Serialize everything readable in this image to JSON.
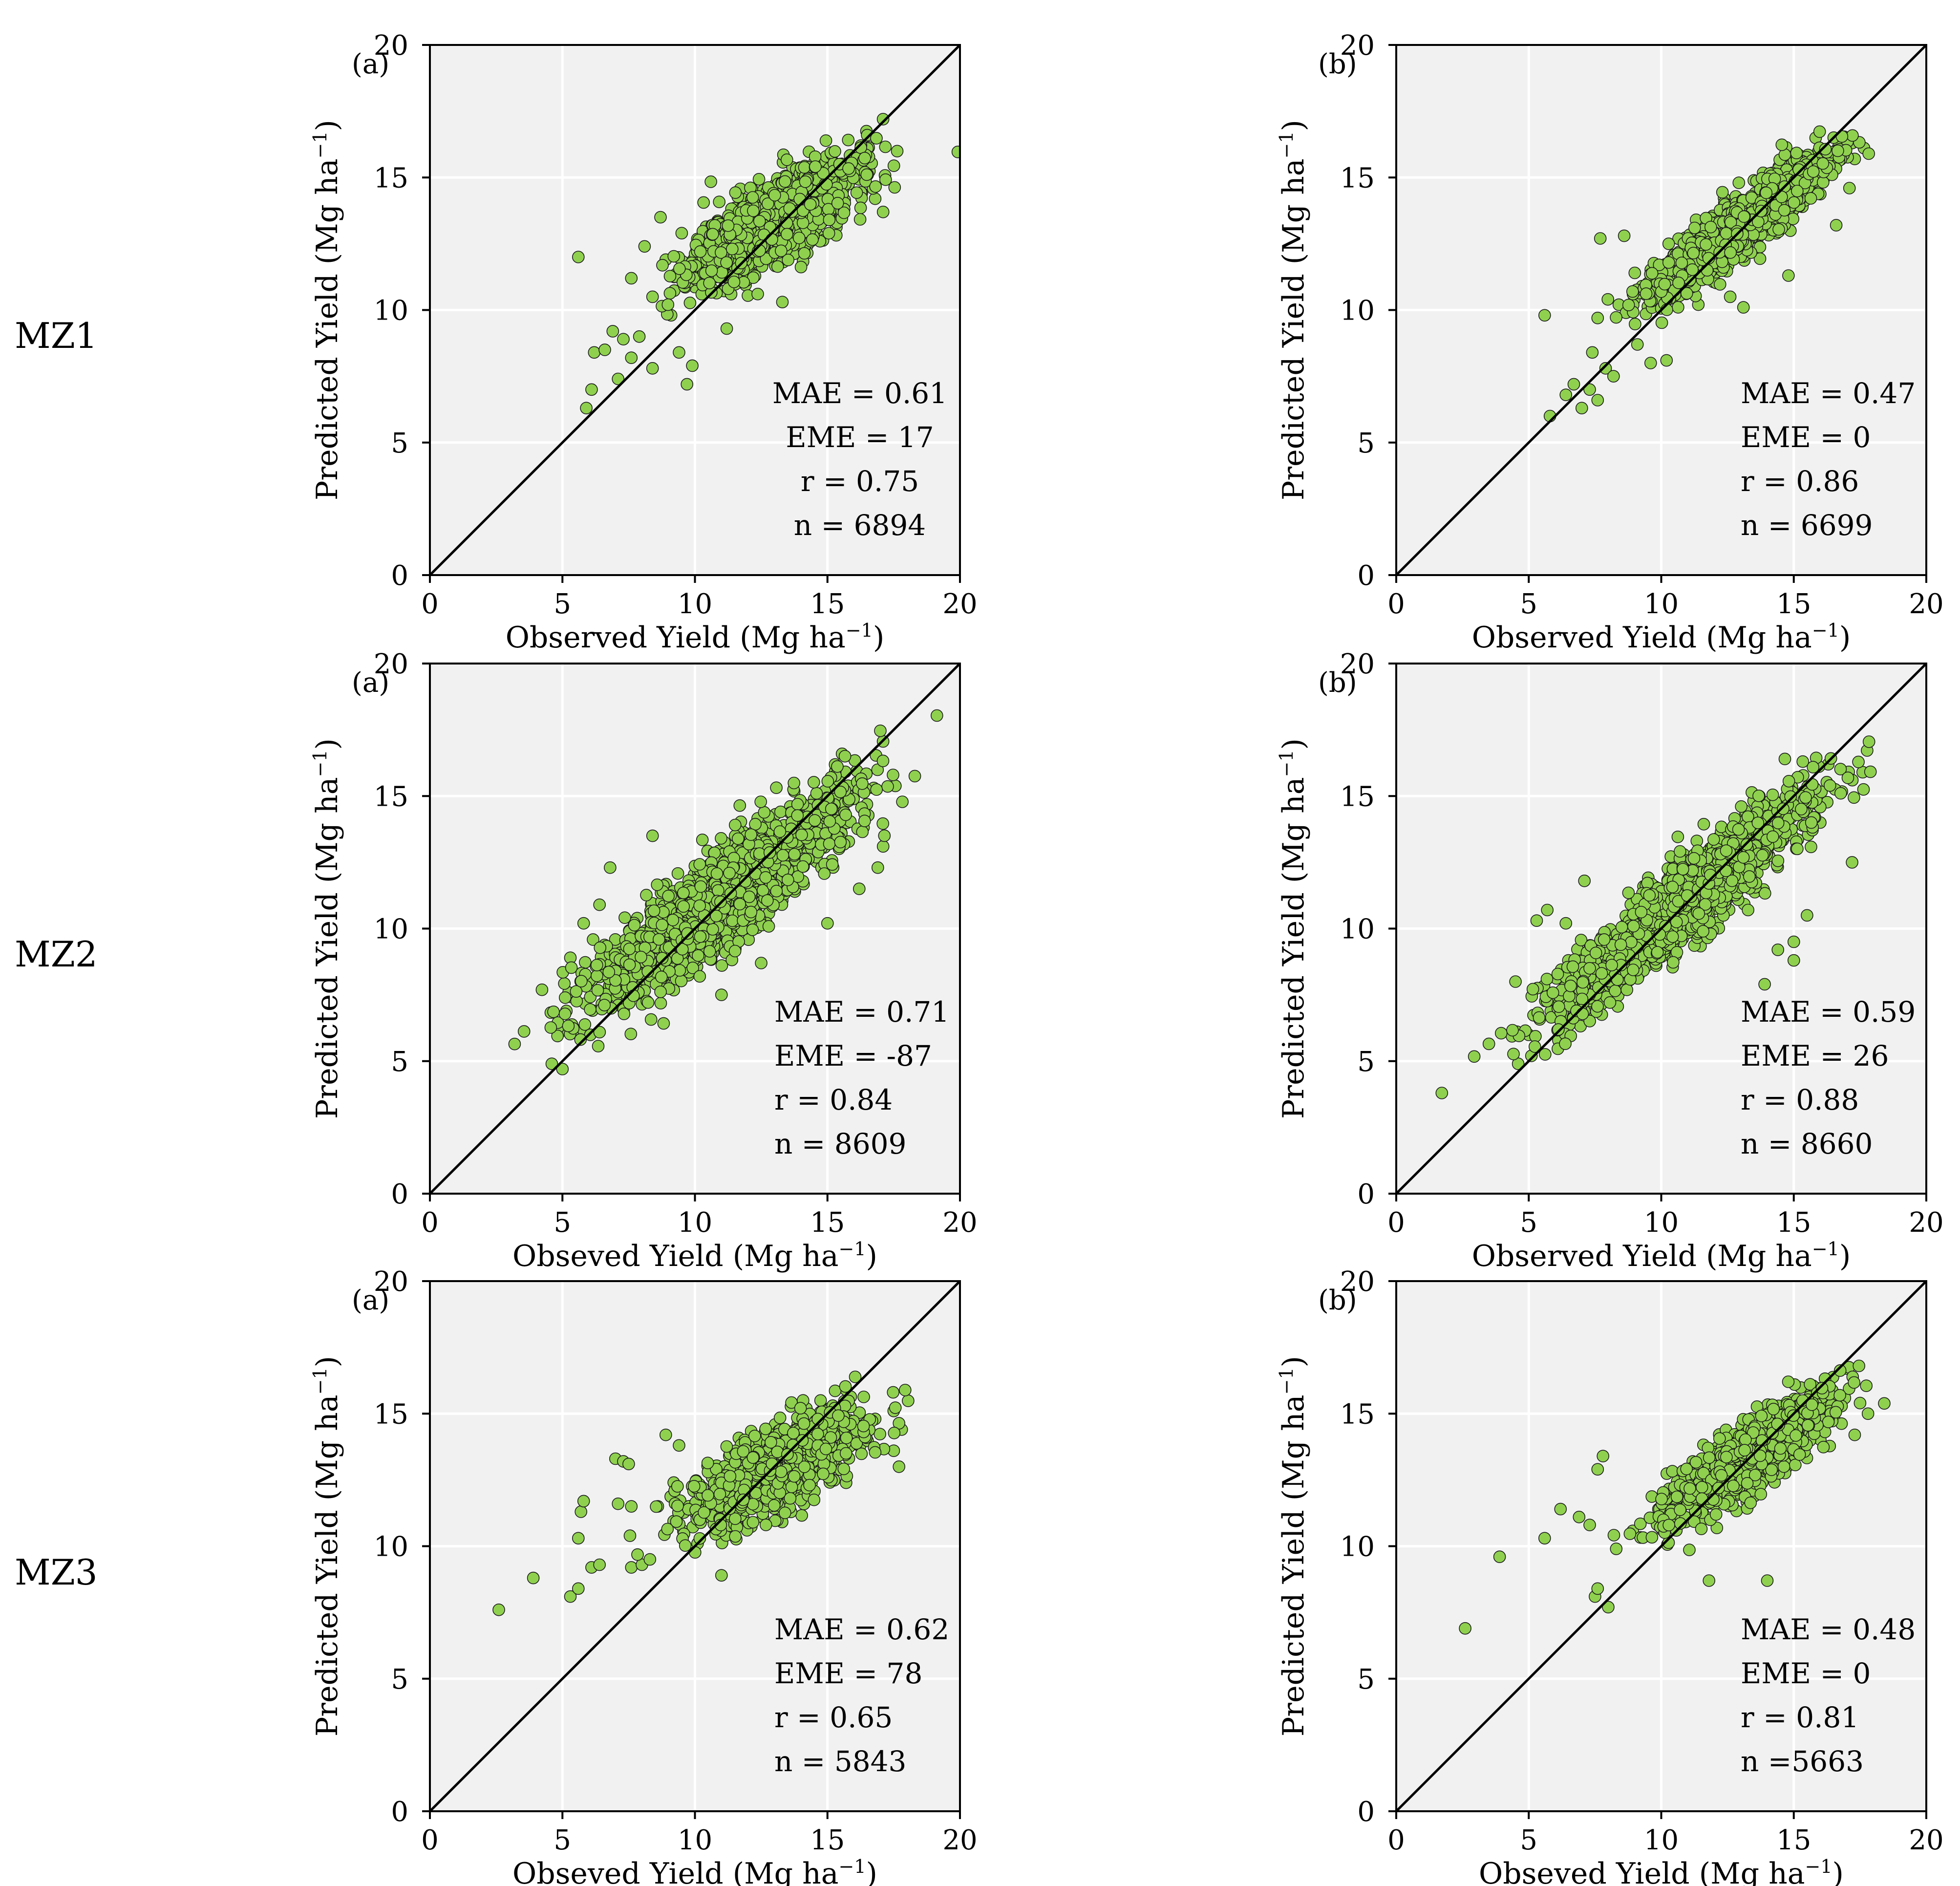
{
  "colors": {
    "plot_background": "#f1f1f1",
    "grid": "#ffffff",
    "point_fill": "#8fd14f",
    "point_edge": "#1a1a1a",
    "one_to_one_line": "#000000"
  },
  "row_labels": [
    "MZ1",
    "MZ2",
    "MZ3"
  ],
  "chart_data": [
    {
      "id": "mz1-a",
      "type": "scatter",
      "panel_label": "(a)",
      "xlabel_main": "Observed Yield (Mg ha",
      "xlabel_sup": "−1",
      "xlabel_end": ")",
      "ylabel_main": "Predicted Yield (Mg ha",
      "ylabel_sup": "−1",
      "ylabel_end": ")",
      "xlim": [
        0,
        20
      ],
      "ylim": [
        0,
        20
      ],
      "xticks": [
        "0",
        "5",
        "10",
        "15",
        "20"
      ],
      "yticks": [
        "0",
        "5",
        "10",
        "15",
        "20"
      ],
      "stats": [
        "MAE = 0.61",
        "EME = 17",
        "r = 0.75",
        "n = 6894"
      ],
      "stats_align": "center",
      "reference_line": "1:1",
      "cloud": {
        "x_mean": 13.0,
        "x_sd": 1.5,
        "slope": 0.55,
        "intercept": 6.2,
        "resid_sd": 0.75,
        "n": 1300,
        "seed": 11
      },
      "outliers": [
        [
          5.6,
          12.0
        ],
        [
          5.9,
          6.3
        ],
        [
          6.1,
          7.0
        ],
        [
          6.2,
          8.4
        ],
        [
          6.6,
          8.5
        ],
        [
          6.9,
          9.2
        ],
        [
          7.1,
          7.4
        ],
        [
          7.3,
          8.9
        ],
        [
          7.6,
          8.2
        ],
        [
          7.9,
          9.0
        ],
        [
          8.4,
          7.8
        ],
        [
          8.7,
          13.5
        ],
        [
          9.1,
          9.8
        ],
        [
          9.4,
          8.4
        ],
        [
          9.7,
          7.2
        ],
        [
          9.9,
          7.9
        ],
        [
          8.4,
          10.5
        ],
        [
          8.9,
          11.9
        ],
        [
          9.5,
          12.9
        ],
        [
          11.2,
          9.3
        ],
        [
          13.3,
          10.3
        ],
        [
          14.6,
          15.1
        ],
        [
          16.2,
          15.2
        ],
        [
          16.8,
          14.2
        ],
        [
          17.1,
          13.7
        ],
        [
          7.6,
          11.2
        ],
        [
          8.1,
          12.4
        ]
      ]
    },
    {
      "id": "mz1-b",
      "type": "scatter",
      "panel_label": "(b)",
      "xlabel_main": "Observed Yield (Mg ha",
      "xlabel_sup": "−1",
      "xlabel_end": ")",
      "ylabel_main": "Predicted Yield (Mg ha",
      "ylabel_sup": "−1",
      "ylabel_end": ")",
      "xlim": [
        0,
        20
      ],
      "ylim": [
        0,
        20
      ],
      "xticks": [
        "0",
        "5",
        "10",
        "15",
        "20"
      ],
      "yticks": [
        "0",
        "5",
        "10",
        "15",
        "20"
      ],
      "stats": [
        "MAE = 0.47",
        "EME = 0",
        "r =  0.86",
        "n = 6699"
      ],
      "stats_align": "left",
      "reference_line": "1:1",
      "cloud": {
        "x_mean": 13.0,
        "x_sd": 1.6,
        "slope": 0.72,
        "intercept": 3.8,
        "resid_sd": 0.55,
        "n": 1300,
        "seed": 23
      },
      "outliers": [
        [
          5.6,
          9.8
        ],
        [
          5.8,
          6.0
        ],
        [
          6.4,
          6.8
        ],
        [
          6.7,
          7.2
        ],
        [
          7.0,
          6.3
        ],
        [
          7.3,
          7.0
        ],
        [
          7.6,
          6.6
        ],
        [
          7.9,
          7.8
        ],
        [
          8.2,
          7.5
        ],
        [
          7.4,
          8.4
        ],
        [
          7.7,
          12.7
        ],
        [
          8.6,
          12.8
        ],
        [
          9.1,
          8.7
        ],
        [
          9.6,
          8.0
        ],
        [
          10.2,
          8.1
        ],
        [
          7.6,
          9.7
        ],
        [
          8.4,
          10.2
        ],
        [
          9.0,
          11.4
        ],
        [
          11.4,
          10.2
        ],
        [
          12.6,
          10.5
        ],
        [
          13.1,
          10.1
        ],
        [
          14.8,
          11.3
        ],
        [
          16.2,
          15.6
        ],
        [
          17.2,
          16.3
        ],
        [
          17.3,
          15.7
        ],
        [
          17.1,
          14.6
        ],
        [
          16.6,
          13.2
        ]
      ]
    },
    {
      "id": "mz2-a",
      "type": "scatter",
      "panel_label": "(a)",
      "xlabel_main": "Obseved Yield (Mg ha",
      "xlabel_sup": "−1",
      "xlabel_end": ")",
      "ylabel_main": "Predicted Yield (Mg ha",
      "ylabel_sup": "−1",
      "ylabel_end": ")",
      "xlim": [
        0,
        20
      ],
      "ylim": [
        0,
        20
      ],
      "xticks": [
        "0",
        "5",
        "10",
        "15",
        "20"
      ],
      "yticks": [
        "0",
        "5",
        "10",
        "15",
        "20"
      ],
      "stats": [
        "MAE = 0.71",
        "EME = -87",
        "r = 0.84",
        "n = 8609"
      ],
      "stats_align": "left",
      "reference_line": "1:1",
      "cloud": {
        "x_mean": 11.0,
        "x_sd": 2.4,
        "slope": 0.72,
        "intercept": 3.2,
        "resid_sd": 0.9,
        "n": 1700,
        "seed": 37
      },
      "outliers": [
        [
          4.6,
          4.9
        ],
        [
          5.0,
          4.7
        ],
        [
          4.9,
          6.1
        ],
        [
          5.3,
          8.9
        ],
        [
          5.8,
          10.2
        ],
        [
          6.4,
          10.9
        ],
        [
          6.8,
          12.3
        ],
        [
          8.4,
          13.5
        ],
        [
          11.0,
          7.5
        ],
        [
          12.5,
          8.7
        ],
        [
          15.0,
          10.2
        ],
        [
          16.2,
          11.5
        ],
        [
          17.1,
          13.1
        ],
        [
          16.9,
          12.3
        ]
      ]
    },
    {
      "id": "mz2-b",
      "type": "scatter",
      "panel_label": "(b)",
      "xlabel_main": "Observed Yield (Mg ha",
      "xlabel_sup": "−1",
      "xlabel_end": ")",
      "ylabel_main": "Predicted Yield (Mg ha",
      "ylabel_sup": "−1",
      "ylabel_end": ")",
      "xlim": [
        0,
        20
      ],
      "ylim": [
        0,
        20
      ],
      "xticks": [
        "0",
        "5",
        "10",
        "15",
        "20"
      ],
      "yticks": [
        "0",
        "5",
        "10",
        "15",
        "20"
      ],
      "stats": [
        "MAE = 0.59",
        "EME = 26",
        "r = 0.88",
        "n = 8660"
      ],
      "stats_align": "left",
      "reference_line": "1:1",
      "cloud": {
        "x_mean": 10.8,
        "x_sd": 2.4,
        "slope": 0.8,
        "intercept": 2.3,
        "resid_sd": 0.75,
        "n": 1700,
        "seed": 41
      },
      "outliers": [
        [
          4.5,
          8.0
        ],
        [
          4.6,
          4.9
        ],
        [
          5.1,
          5.2
        ],
        [
          5.3,
          10.3
        ],
        [
          5.7,
          10.7
        ],
        [
          6.4,
          10.2
        ],
        [
          7.1,
          11.8
        ],
        [
          13.9,
          7.9
        ],
        [
          14.4,
          9.2
        ],
        [
          15.0,
          9.5
        ],
        [
          15.0,
          8.8
        ],
        [
          15.5,
          10.5
        ],
        [
          16.0,
          14.0
        ],
        [
          17.2,
          12.5
        ],
        [
          17.6,
          15.9
        ],
        [
          16.3,
          16.2
        ],
        [
          15.7,
          14.9
        ]
      ]
    },
    {
      "id": "mz3-a",
      "type": "scatter",
      "panel_label": "(a)",
      "xlabel_main": "Obseved Yield (Mg ha",
      "xlabel_sup": "−1",
      "xlabel_end": ")",
      "ylabel_main": "Predicted Yield (Mg ha",
      "ylabel_sup": "−1",
      "ylabel_end": ")",
      "xlim": [
        0,
        20
      ],
      "ylim": [
        0,
        20
      ],
      "xticks": [
        "0",
        "5",
        "10",
        "15",
        "20"
      ],
      "yticks": [
        "0",
        "5",
        "10",
        "15",
        "20"
      ],
      "stats": [
        "MAE = 0.62",
        "EME = 78",
        "r = 0.65",
        "n = 5843"
      ],
      "stats_align": "left",
      "reference_line": "1:1",
      "cloud": {
        "x_mean": 13.1,
        "x_sd": 1.6,
        "slope": 0.5,
        "intercept": 6.4,
        "resid_sd": 0.75,
        "n": 1200,
        "seed": 53
      },
      "outliers": [
        [
          2.6,
          7.6
        ],
        [
          3.9,
          8.8
        ],
        [
          5.3,
          8.1
        ],
        [
          5.6,
          8.4
        ],
        [
          5.6,
          10.3
        ],
        [
          5.7,
          11.3
        ],
        [
          5.8,
          11.7
        ],
        [
          6.1,
          9.2
        ],
        [
          6.4,
          9.3
        ],
        [
          7.0,
          13.3
        ],
        [
          7.3,
          13.2
        ],
        [
          7.5,
          13.1
        ],
        [
          7.1,
          11.6
        ],
        [
          7.6,
          11.5
        ],
        [
          7.6,
          9.2
        ],
        [
          8.0,
          9.3
        ],
        [
          8.3,
          9.5
        ],
        [
          8.6,
          11.5
        ],
        [
          8.9,
          14.2
        ],
        [
          9.4,
          13.8
        ],
        [
          9.2,
          12.4
        ],
        [
          10.1,
          10.1
        ],
        [
          11.0,
          8.9
        ],
        [
          15.7,
          15.9
        ],
        [
          16.8,
          14.8
        ],
        [
          17.5,
          15.1
        ],
        [
          17.7,
          13.0
        ],
        [
          17.5,
          13.6
        ],
        [
          17.8,
          14.4
        ]
      ]
    },
    {
      "id": "mz3-b",
      "type": "scatter",
      "panel_label": "(b)",
      "xlabel_main": "Obseved Yield (Mg ha",
      "xlabel_sup": "−1",
      "xlabel_end": ")",
      "ylabel_main": "Predicted Yield (Mg ha",
      "ylabel_sup": "−1",
      "ylabel_end": ")",
      "xlim": [
        0,
        20
      ],
      "ylim": [
        0,
        20
      ],
      "xticks": [
        "0",
        "5",
        "10",
        "15",
        "20"
      ],
      "yticks": [
        "0",
        "5",
        "10",
        "15",
        "20"
      ],
      "stats": [
        "MAE = 0.48",
        "EME = 0",
        "r = 0.81",
        "n =5663"
      ],
      "stats_align": "left",
      "reference_line": "1:1",
      "cloud": {
        "x_mean": 13.3,
        "x_sd": 1.5,
        "slope": 0.65,
        "intercept": 4.7,
        "resid_sd": 0.6,
        "n": 1200,
        "seed": 67
      },
      "outliers": [
        [
          2.6,
          6.9
        ],
        [
          3.9,
          9.6
        ],
        [
          5.6,
          10.3
        ],
        [
          6.2,
          11.4
        ],
        [
          6.9,
          11.1
        ],
        [
          7.3,
          10.8
        ],
        [
          7.5,
          8.1
        ],
        [
          7.6,
          8.4
        ],
        [
          7.6,
          12.9
        ],
        [
          7.8,
          13.4
        ],
        [
          8.0,
          7.7
        ],
        [
          8.3,
          9.9
        ],
        [
          11.8,
          8.7
        ],
        [
          14.0,
          8.7
        ],
        [
          16.4,
          15.6
        ],
        [
          17.0,
          16.7
        ],
        [
          17.5,
          15.4
        ],
        [
          17.8,
          15.0
        ],
        [
          17.3,
          14.2
        ]
      ]
    }
  ]
}
